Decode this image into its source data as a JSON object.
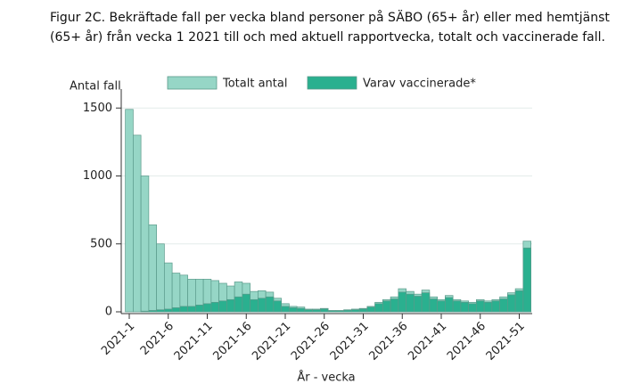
{
  "chart_data": {
    "type": "bar",
    "title": [
      "Figur 2C. Bekräftade fall per vecka bland personer på SÄBO (65+ år) eller med hemtjänst",
      "(65+ år) från vecka 1 2021 till och med aktuell rapportvecka, totalt och vaccinerade fall."
    ],
    "ylabel": "Antal fall",
    "xlabel": "År - vecka",
    "categories": [
      "2021-1",
      null,
      null,
      null,
      null,
      "2021-6",
      null,
      null,
      null,
      null,
      "2021-11",
      null,
      null,
      null,
      null,
      "2021-16",
      null,
      null,
      null,
      null,
      "2021-21",
      null,
      null,
      null,
      null,
      "2021-26",
      null,
      null,
      null,
      null,
      "2021-31",
      null,
      null,
      null,
      null,
      "2021-36",
      null,
      null,
      null,
      null,
      "2021-41",
      null,
      null,
      null,
      null,
      "2021-46",
      null,
      null,
      null,
      null,
      "2021-51",
      null
    ],
    "series": [
      {
        "name": "Totalt antal",
        "color": "#96d6c6",
        "values": [
          1490,
          1300,
          1000,
          640,
          500,
          360,
          285,
          270,
          240,
          240,
          240,
          230,
          210,
          190,
          220,
          210,
          150,
          155,
          145,
          100,
          60,
          40,
          35,
          20,
          20,
          25,
          10,
          10,
          15,
          20,
          25,
          40,
          70,
          90,
          110,
          170,
          150,
          130,
          160,
          110,
          90,
          120,
          90,
          80,
          70,
          90,
          80,
          90,
          110,
          140,
          170,
          520
        ]
      },
      {
        "name": "Varav vaccinerade*",
        "color": "#2ab08f",
        "values": [
          0,
          0,
          5,
          10,
          15,
          20,
          30,
          40,
          40,
          50,
          60,
          70,
          80,
          90,
          110,
          130,
          90,
          100,
          110,
          80,
          40,
          30,
          25,
          15,
          15,
          20,
          8,
          8,
          12,
          15,
          20,
          35,
          60,
          80,
          95,
          145,
          130,
          115,
          140,
          95,
          80,
          105,
          80,
          70,
          60,
          80,
          70,
          80,
          95,
          125,
          155,
          470
        ]
      }
    ],
    "ylim": [
      0,
      1600
    ],
    "yticks": [
      0,
      500,
      1000,
      1500
    ],
    "grid": true
  }
}
